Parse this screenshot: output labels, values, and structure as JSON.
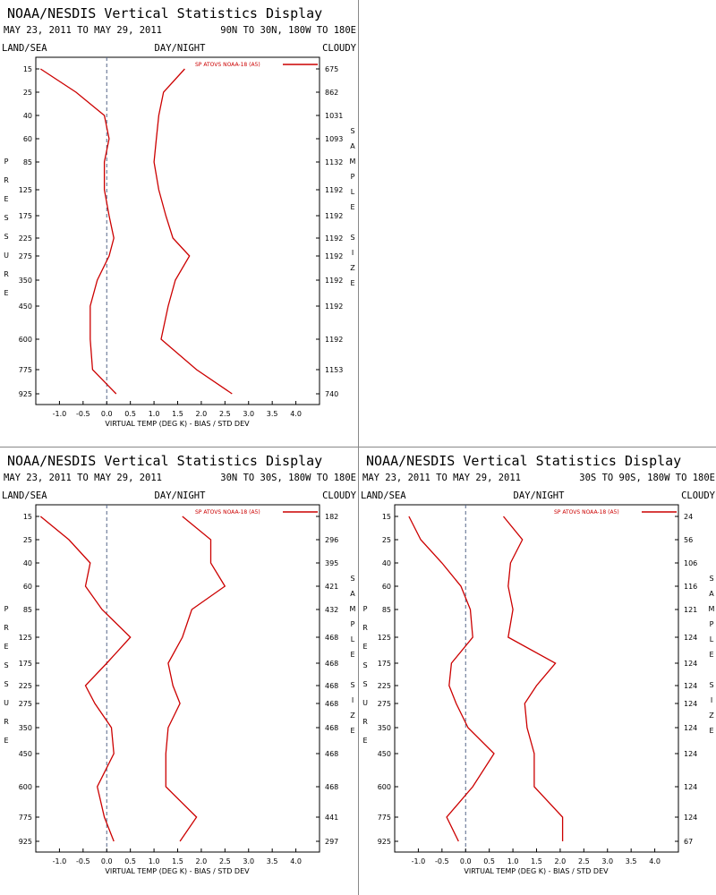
{
  "panel_header": {
    "title": "NOAA/NESDIS Vertical Statistics Display",
    "date_range": "MAY 23, 2011 TO MAY 29, 2011",
    "land_sea": "LAND/SEA",
    "day_night": "DAY/NIGHT",
    "cloudy": "CLOUDY"
  },
  "chart_data": [
    {
      "type": "line",
      "region": "90N TO 30N, 180W TO 180E",
      "xlabel": "VIRTUAL TEMP (DEG K) - BIAS / STD DEV",
      "ylabel": "PRESSURE",
      "y2label": "SAMPLE SIZE",
      "xlim": [
        -1.5,
        4.5
      ],
      "xticks": [
        "-1.0",
        "-0.5",
        "0.0",
        "0.5",
        "1.0",
        "1.5",
        "2.0",
        "2.5",
        "3.0",
        "3.5",
        "4.0"
      ],
      "pressure_levels": [
        "15",
        "25",
        "40",
        "60",
        "85",
        "125",
        "175",
        "225",
        "275",
        "350",
        "450",
        "600",
        "775",
        "925"
      ],
      "sample_size": [
        "675",
        "862",
        "1031",
        "1093",
        "1132",
        "1192",
        "1192",
        "1192",
        "1192",
        "1192",
        "1192",
        "1192",
        "1153",
        "740"
      ],
      "legend": "SP ATOVS NOAA-18 (A5)",
      "series": [
        {
          "role": "bias",
          "values": [
            -1.4,
            -0.65,
            -0.05,
            0.05,
            -0.05,
            -0.05,
            0.05,
            0.15,
            0.05,
            -0.2,
            -0.35,
            -0.35,
            -0.3,
            0.2
          ]
        },
        {
          "role": "std_dev",
          "values": [
            1.65,
            1.2,
            1.1,
            1.05,
            1.0,
            1.1,
            1.25,
            1.4,
            1.75,
            1.45,
            1.3,
            1.15,
            1.9,
            2.65
          ]
        }
      ]
    },
    {
      "type": "line",
      "region": "30N TO 30S, 180W TO 180E",
      "xlabel": "VIRTUAL TEMP (DEG K) - BIAS / STD DEV",
      "ylabel": "PRESSURE",
      "y2label": "SAMPLE SIZE",
      "xlim": [
        -1.5,
        4.5
      ],
      "xticks": [
        "-1.0",
        "-0.5",
        "0.0",
        "0.5",
        "1.0",
        "1.5",
        "2.0",
        "2.5",
        "3.0",
        "3.5",
        "4.0"
      ],
      "pressure_levels": [
        "15",
        "25",
        "40",
        "60",
        "85",
        "125",
        "175",
        "225",
        "275",
        "350",
        "450",
        "600",
        "775",
        "925"
      ],
      "sample_size": [
        "182",
        "296",
        "395",
        "421",
        "432",
        "468",
        "468",
        "468",
        "468",
        "468",
        "468",
        "468",
        "441",
        "297"
      ],
      "legend": "SP ATOVS NOAA-18 (A5)",
      "series": [
        {
          "role": "bias",
          "values": [
            -1.4,
            -0.8,
            -0.35,
            -0.45,
            -0.1,
            0.5,
            0.0,
            -0.45,
            -0.25,
            0.1,
            0.15,
            -0.2,
            -0.05,
            0.15
          ]
        },
        {
          "role": "std_dev",
          "values": [
            1.6,
            2.2,
            2.2,
            2.5,
            1.8,
            1.6,
            1.3,
            1.4,
            1.55,
            1.3,
            1.25,
            1.25,
            1.9,
            1.55
          ]
        }
      ]
    },
    {
      "type": "line",
      "region": "30S TO 90S, 180W TO 180E",
      "xlabel": "VIRTUAL TEMP (DEG K) - BIAS / STD DEV",
      "ylabel": "PRESSURE",
      "y2label": "SAMPLE SIZE",
      "xlim": [
        -1.5,
        4.5
      ],
      "xticks": [
        "-1.0",
        "-0.5",
        "0.0",
        "0.5",
        "1.0",
        "1.5",
        "2.0",
        "2.5",
        "3.0",
        "3.5",
        "4.0"
      ],
      "pressure_levels": [
        "15",
        "25",
        "40",
        "60",
        "85",
        "125",
        "175",
        "225",
        "275",
        "350",
        "450",
        "600",
        "775",
        "925"
      ],
      "sample_size": [
        "24",
        "56",
        "106",
        "116",
        "121",
        "124",
        "124",
        "124",
        "124",
        "124",
        "124",
        "124",
        "124",
        "67"
      ],
      "legend": "SP ATOVS NOAA-18 (A5)",
      "series": [
        {
          "role": "bias",
          "values": [
            -1.2,
            -0.95,
            -0.5,
            -0.1,
            0.1,
            0.15,
            -0.3,
            -0.35,
            -0.2,
            0.05,
            0.6,
            0.15,
            -0.4,
            -0.15
          ]
        },
        {
          "role": "std_dev",
          "values": [
            0.8,
            1.2,
            0.95,
            0.9,
            1.0,
            0.9,
            1.9,
            1.5,
            1.25,
            1.3,
            1.45,
            1.45,
            2.05,
            2.05
          ]
        }
      ]
    }
  ],
  "colors": {
    "line": "#cc0000",
    "axis": "#000000",
    "zero": "#556688"
  }
}
